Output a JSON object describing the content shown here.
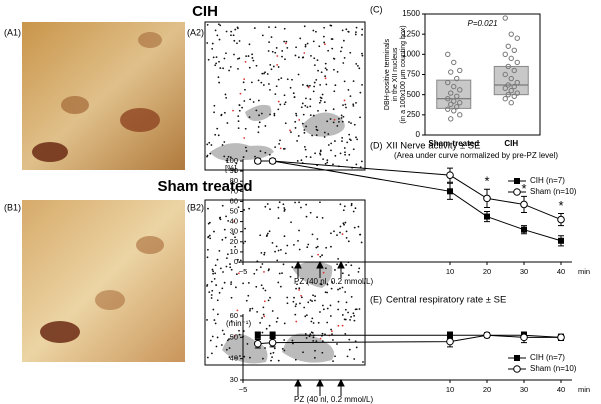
{
  "figure": {
    "headings": [
      "CIH",
      "Sham treated"
    ],
    "panel_labels": [
      "(A1)",
      "(A2)",
      "(B1)",
      "(B2)"
    ]
  },
  "chart_data": [
    {
      "type": "box",
      "panel": "(C)",
      "ylabel": [
        "DBH-positive terminals",
        "in the XII nucleus",
        "(in a 100x100 μm counting box)"
      ],
      "categories": [
        "Sham treated",
        "CIH"
      ],
      "boxes": [
        {
          "q1": 330,
          "median": 450,
          "q3": 680
        },
        {
          "q1": 500,
          "median": 620,
          "q3": 850
        }
      ],
      "points": [
        [
          1000,
          900,
          800,
          780,
          700,
          650,
          600,
          560,
          520,
          480,
          450,
          420,
          400,
          380,
          350,
          320,
          300,
          250,
          200
        ],
        [
          1450,
          1250,
          1200,
          1100,
          1050,
          1000,
          950,
          900,
          850,
          800,
          750,
          700,
          650,
          620,
          600,
          580,
          550,
          520,
          500,
          480,
          450,
          400
        ]
      ],
      "color": "#c8c8c8",
      "annotation": "P=0.021",
      "ylim": [
        0,
        1500
      ],
      "yticks": [
        0,
        250,
        500,
        750,
        1000,
        1250,
        1500
      ]
    },
    {
      "type": "line",
      "panel": "(D)",
      "title": "XII Nerve activity ± SE",
      "subtitle": "(Area under curve normalized by pre-PZ level)",
      "ylabel": "[%]",
      "xlabel": "PZ (40 nl, 0.2 mmol/L)",
      "x_unit": "min",
      "x": [
        -3,
        -1,
        10,
        20,
        30,
        40
      ],
      "series": [
        {
          "name": "CIH (n=7)",
          "marker": "square",
          "color": "#000000",
          "values": [
            100,
            100,
            70,
            45,
            32,
            21
          ],
          "errors": [
            0,
            0,
            8,
            5,
            4,
            5
          ]
        },
        {
          "name": "Sham (n=10)",
          "marker": "circle",
          "color": "#000000",
          "values": [
            100,
            100,
            86,
            63,
            57,
            42
          ],
          "errors": [
            0,
            0,
            7,
            9,
            8,
            6
          ]
        }
      ],
      "significance": [
        null,
        null,
        null,
        "*",
        "*",
        "*"
      ],
      "legend": "upper right",
      "xlim": [
        -5,
        45
      ],
      "xticks": [
        {
          "value": -5,
          "label": "−5"
        },
        10,
        20,
        30,
        40
      ],
      "ylim": [
        0,
        100
      ],
      "yticks": [
        0,
        10,
        20,
        30,
        40,
        50,
        60,
        70,
        80,
        90,
        100
      ]
    },
    {
      "type": "line",
      "panel": "(E)",
      "title": "Central respiratory rate ± SE",
      "ylabel": "(min⁻¹)",
      "xlabel": "PZ (40 nl, 0.2 mmol/L)",
      "x_unit": "min",
      "x": [
        -3,
        -1,
        10,
        20,
        30,
        40
      ],
      "series": [
        {
          "name": "CIH (n=7)",
          "marker": "square",
          "color": "#000000",
          "values": [
            51,
            51,
            51,
            51,
            51,
            50
          ],
          "errors": [
            1.5,
            1.5,
            1.5,
            1,
            1,
            1
          ]
        },
        {
          "name": "Sham (n=10)",
          "marker": "circle",
          "color": "#000000",
          "values": [
            47,
            47.5,
            48,
            51,
            50,
            50
          ],
          "errors": [
            2,
            2,
            2.5,
            1,
            2.5,
            1.5
          ]
        }
      ],
      "legend": "lower right",
      "xlim": [
        -5,
        45
      ],
      "xticks": [
        {
          "value": -5,
          "label": "−5"
        },
        10,
        20,
        30,
        40
      ],
      "ylim": [
        30,
        60
      ],
      "yticks": [
        30,
        40,
        50,
        60
      ]
    }
  ]
}
